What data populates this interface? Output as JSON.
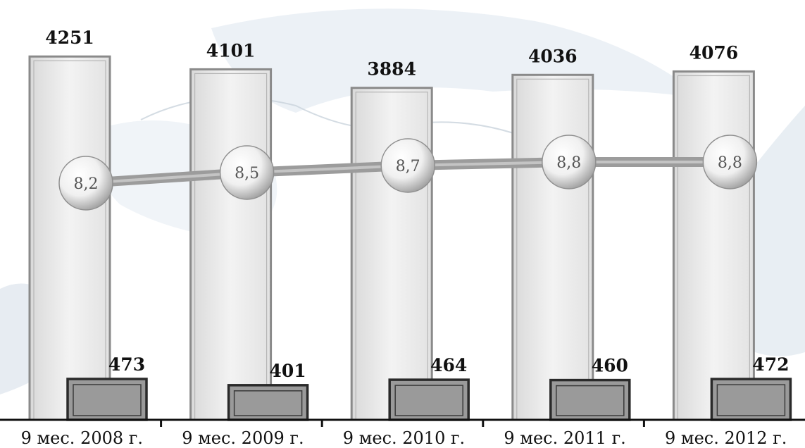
{
  "chart_data": {
    "type": "bar",
    "categories": [
      "9 мес. 2008 г.",
      "9 мес. 2009 г.",
      "9 мес. 2010 г.",
      "9 мес. 2011 г.",
      "9 мес. 2012 г."
    ],
    "series": [
      {
        "values": [
          4251,
          4101,
          3884,
          4036,
          4076
        ]
      },
      {
        "values": [
          473,
          401,
          464,
          460,
          472
        ]
      },
      {
        "type": "line",
        "values": [
          8.2,
          8.5,
          8.7,
          8.8,
          8.8
        ],
        "labels": [
          "8,2",
          "8,5",
          "8,7",
          "8,8",
          "8,8"
        ]
      }
    ],
    "ylim": [
      0,
      4500
    ],
    "colors": {
      "tall_bar_fill": "#ececec",
      "tall_bar_border": "#8a8a8a",
      "short_bar_fill": "#9a9a9a",
      "short_bar_border": "#2a2a2a",
      "line": "#9c9c9c",
      "map_tint": "#dde6ef"
    }
  }
}
